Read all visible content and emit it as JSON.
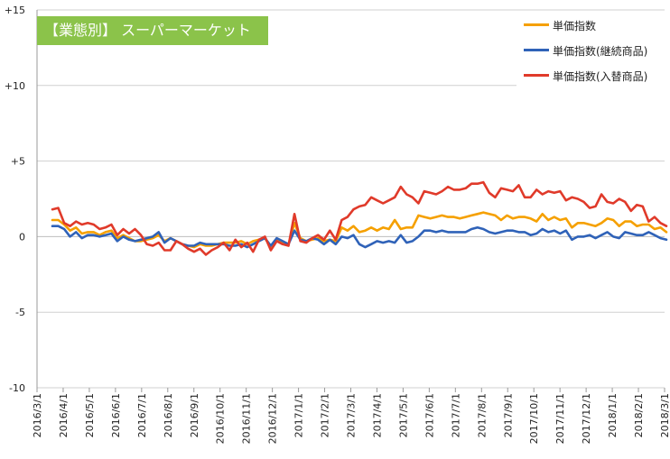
{
  "title": "【業態別】 スーパーマーケット",
  "chart_data": {
    "type": "line",
    "ylim": [
      -10,
      15
    ],
    "y_ticks": [
      {
        "value": 15,
        "label": "+15"
      },
      {
        "value": 10,
        "label": "+10"
      },
      {
        "value": 5,
        "label": "+5"
      },
      {
        "value": 0,
        "label": "0"
      },
      {
        "value": -5,
        "label": "-5"
      },
      {
        "value": -10,
        "label": "-10"
      }
    ],
    "x_tick_labels": [
      "2016/3/1",
      "2016/4/1",
      "2016/5/1",
      "2016/6/1",
      "2016/7/1",
      "2016/8/1",
      "2016/9/1",
      "2016/10/1",
      "2016/11/1",
      "2016/12/1",
      "2017/1/1",
      "2017/2/1",
      "2017/3/1",
      "2017/4/1",
      "2017/5/1",
      "2017/6/1",
      "2017/7/1",
      "2017/8/1",
      "2017/9/1",
      "2017/10/1",
      "2017/11/1",
      "2017/12/1",
      "2018/1/1",
      "2018/2/1",
      "2018/3/1"
    ],
    "grid": "horizontal",
    "legend_position": "top-right",
    "series": [
      {
        "name": "単価指数",
        "color": "#f5a000",
        "values": [
          1.1,
          1.1,
          0.8,
          0.4,
          0.6,
          0.2,
          0.3,
          0.3,
          0.1,
          0.3,
          0.4,
          -0.1,
          0.1,
          -0.1,
          -0.3,
          -0.3,
          -0.2,
          -0.1,
          0.1,
          -0.3,
          -0.1,
          -0.3,
          -0.5,
          -0.6,
          -0.7,
          -0.5,
          -0.6,
          -0.6,
          -0.5,
          -0.4,
          -0.4,
          -0.4,
          -0.3,
          -0.5,
          -0.3,
          -0.2,
          -0.1,
          -0.7,
          -0.2,
          -0.4,
          -0.5,
          0.9,
          -0.1,
          -0.3,
          -0.2,
          -0.1,
          -0.3,
          -0.2,
          -0.3,
          0.6,
          0.4,
          0.7,
          0.3,
          0.4,
          0.6,
          0.4,
          0.6,
          0.5,
          1.1,
          0.5,
          0.6,
          0.6,
          1.4,
          1.3,
          1.2,
          1.3,
          1.4,
          1.3,
          1.3,
          1.2,
          1.3,
          1.4,
          1.5,
          1.6,
          1.5,
          1.4,
          1.1,
          1.4,
          1.2,
          1.3,
          1.3,
          1.2,
          1.0,
          1.5,
          1.1,
          1.3,
          1.1,
          1.2,
          0.6,
          0.9,
          0.9,
          0.8,
          0.7,
          0.9,
          1.2,
          1.1,
          0.7,
          1.0,
          1.0,
          0.7,
          0.8,
          0.8,
          0.5,
          0.6,
          0.3
        ]
      },
      {
        "name": "単価指数(継続商品)",
        "color": "#2f62b8",
        "values": [
          0.7,
          0.7,
          0.5,
          0.0,
          0.3,
          -0.1,
          0.1,
          0.1,
          0.0,
          0.1,
          0.2,
          -0.3,
          0.0,
          -0.2,
          -0.3,
          -0.2,
          -0.1,
          0.0,
          0.3,
          -0.4,
          -0.1,
          -0.3,
          -0.5,
          -0.6,
          -0.6,
          -0.4,
          -0.5,
          -0.5,
          -0.5,
          -0.5,
          -0.6,
          -0.6,
          -0.5,
          -0.7,
          -0.5,
          -0.3,
          -0.1,
          -0.6,
          -0.1,
          -0.3,
          -0.5,
          0.4,
          -0.2,
          -0.3,
          -0.1,
          -0.2,
          -0.5,
          -0.2,
          -0.5,
          0.0,
          -0.1,
          0.1,
          -0.5,
          -0.7,
          -0.5,
          -0.3,
          -0.4,
          -0.3,
          -0.4,
          0.1,
          -0.4,
          -0.3,
          0.0,
          0.4,
          0.4,
          0.3,
          0.4,
          0.3,
          0.3,
          0.3,
          0.3,
          0.5,
          0.6,
          0.5,
          0.3,
          0.2,
          0.3,
          0.4,
          0.4,
          0.3,
          0.3,
          0.1,
          0.2,
          0.5,
          0.3,
          0.4,
          0.2,
          0.4,
          -0.2,
          0.0,
          0.0,
          0.1,
          -0.1,
          0.1,
          0.3,
          0.0,
          -0.1,
          0.3,
          0.2,
          0.1,
          0.1,
          0.3,
          0.1,
          -0.1,
          -0.2
        ]
      },
      {
        "name": "単価指数(入替商品)",
        "color": "#e03a2a",
        "values": [
          1.8,
          1.9,
          0.9,
          0.7,
          1.0,
          0.8,
          0.9,
          0.8,
          0.5,
          0.6,
          0.8,
          0.1,
          0.5,
          0.2,
          0.5,
          0.1,
          -0.5,
          -0.6,
          -0.4,
          -0.9,
          -0.9,
          -0.3,
          -0.5,
          -0.8,
          -1.0,
          -0.8,
          -1.2,
          -0.9,
          -0.7,
          -0.4,
          -0.9,
          -0.2,
          -0.7,
          -0.4,
          -1.0,
          -0.2,
          0.0,
          -0.9,
          -0.3,
          -0.5,
          -0.6,
          1.5,
          -0.3,
          -0.4,
          -0.1,
          0.1,
          -0.2,
          0.4,
          -0.2,
          1.1,
          1.3,
          1.8,
          2.0,
          2.1,
          2.6,
          2.4,
          2.2,
          2.4,
          2.6,
          3.3,
          2.8,
          2.6,
          2.2,
          3.0,
          2.9,
          2.8,
          3.0,
          3.3,
          3.1,
          3.1,
          3.2,
          3.5,
          3.5,
          3.6,
          2.9,
          2.6,
          3.2,
          3.1,
          3.0,
          3.4,
          2.6,
          2.6,
          3.1,
          2.8,
          3.0,
          2.9,
          3.0,
          2.4,
          2.6,
          2.5,
          2.3,
          1.9,
          2.0,
          2.8,
          2.3,
          2.2,
          2.5,
          2.3,
          1.7,
          2.1,
          2.0,
          1.0,
          1.3,
          0.9,
          0.7
        ]
      }
    ]
  }
}
